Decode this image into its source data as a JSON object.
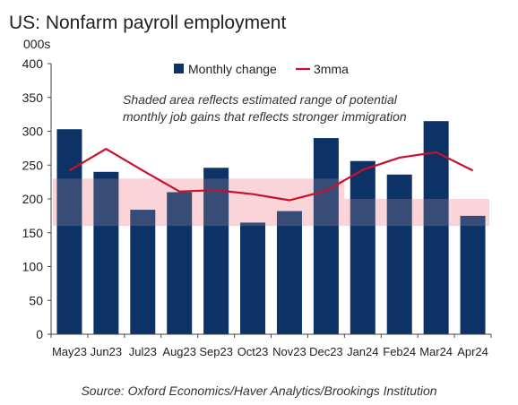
{
  "colors": {
    "bar": "#0d3266",
    "line": "#c8102e",
    "shade": "#f8c9cf",
    "axis": "#444444",
    "text": "#222222"
  },
  "chart_data": {
    "type": "bar",
    "title": "US: Nonfarm payroll employment",
    "ylabel": "000s",
    "ylim": [
      0,
      400
    ],
    "yticks": [
      0,
      50,
      100,
      150,
      200,
      250,
      300,
      350,
      400
    ],
    "categories": [
      "May23",
      "Jun23",
      "Jul23",
      "Aug23",
      "Sep23",
      "Oct23",
      "Nov23",
      "Dec23",
      "Jan24",
      "Feb24",
      "Mar24",
      "Apr24"
    ],
    "series": [
      {
        "name": "Monthly change",
        "type": "bar",
        "values": [
          303,
          240,
          184,
          210,
          246,
          165,
          182,
          290,
          256,
          236,
          315,
          175
        ]
      },
      {
        "name": "3mma",
        "type": "line",
        "values": [
          242,
          274,
          242,
          211,
          213,
          207,
          198,
          212,
          243,
          261,
          269,
          242
        ]
      }
    ],
    "shaded_ranges": [
      {
        "from": "May23",
        "to": "Dec23",
        "low": 160,
        "high": 230
      },
      {
        "from": "Jan24",
        "to": "Apr24",
        "low": 160,
        "high": 200
      }
    ],
    "annotation": [
      "Shaded area reflects estimated range of potential",
      "monthly job gains that reflects stronger immigration"
    ],
    "legend_position": "top",
    "grid": false,
    "source": "Source: Oxford Economics/Haver Analytics/Brookings Institution"
  }
}
